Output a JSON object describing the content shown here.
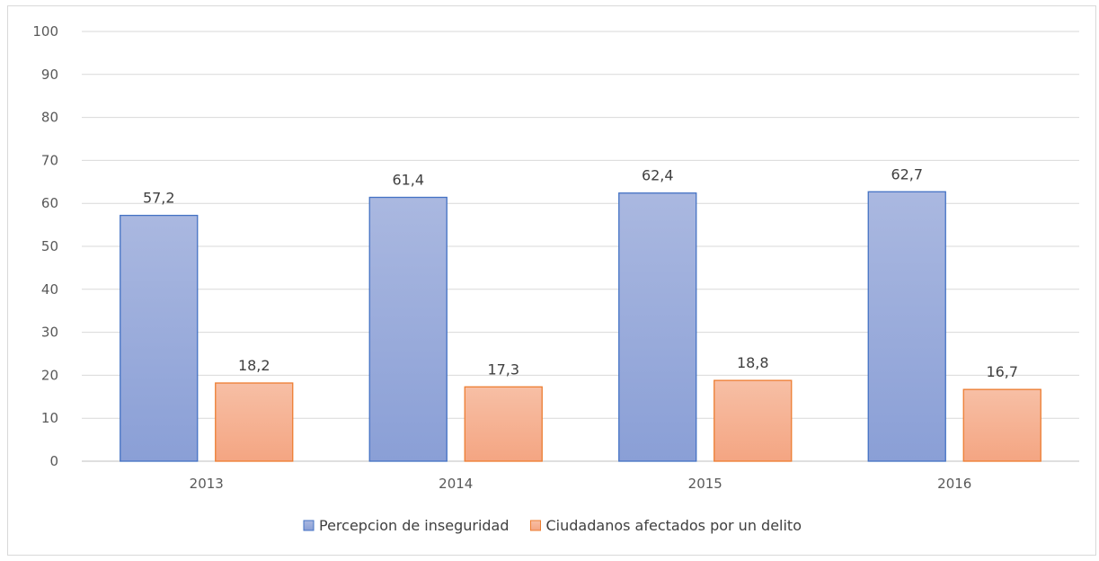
{
  "chart_data": {
    "type": "bar",
    "categories": [
      "2013",
      "2014",
      "2015",
      "2016"
    ],
    "series": [
      {
        "name": "Percepcion de inseguridad",
        "values": [
          57.2,
          61.4,
          62.4,
          62.7
        ],
        "labels": [
          "57,2",
          "61,4",
          "62,4",
          "62,7"
        ],
        "color_top": "#aab8e0",
        "color_bottom": "#8a9fd6",
        "stroke": "#4472c4"
      },
      {
        "name": "Ciudadanos afectados por un delito",
        "values": [
          18.2,
          17.3,
          18.8,
          16.7
        ],
        "labels": [
          "18,2",
          "17,3",
          "18,8",
          "16,7"
        ],
        "color_top": "#f7bfa5",
        "color_bottom": "#f4a582",
        "stroke": "#ed7d31"
      }
    ],
    "y_ticks": [
      "0",
      "10",
      "20",
      "30",
      "40",
      "50",
      "60",
      "70",
      "80",
      "90",
      "100"
    ],
    "ylim": [
      0,
      100
    ],
    "grid": true,
    "legend_position": "bottom-center",
    "gridline_color": "#d9d9d9",
    "axis_color": "#bfbfbf"
  }
}
